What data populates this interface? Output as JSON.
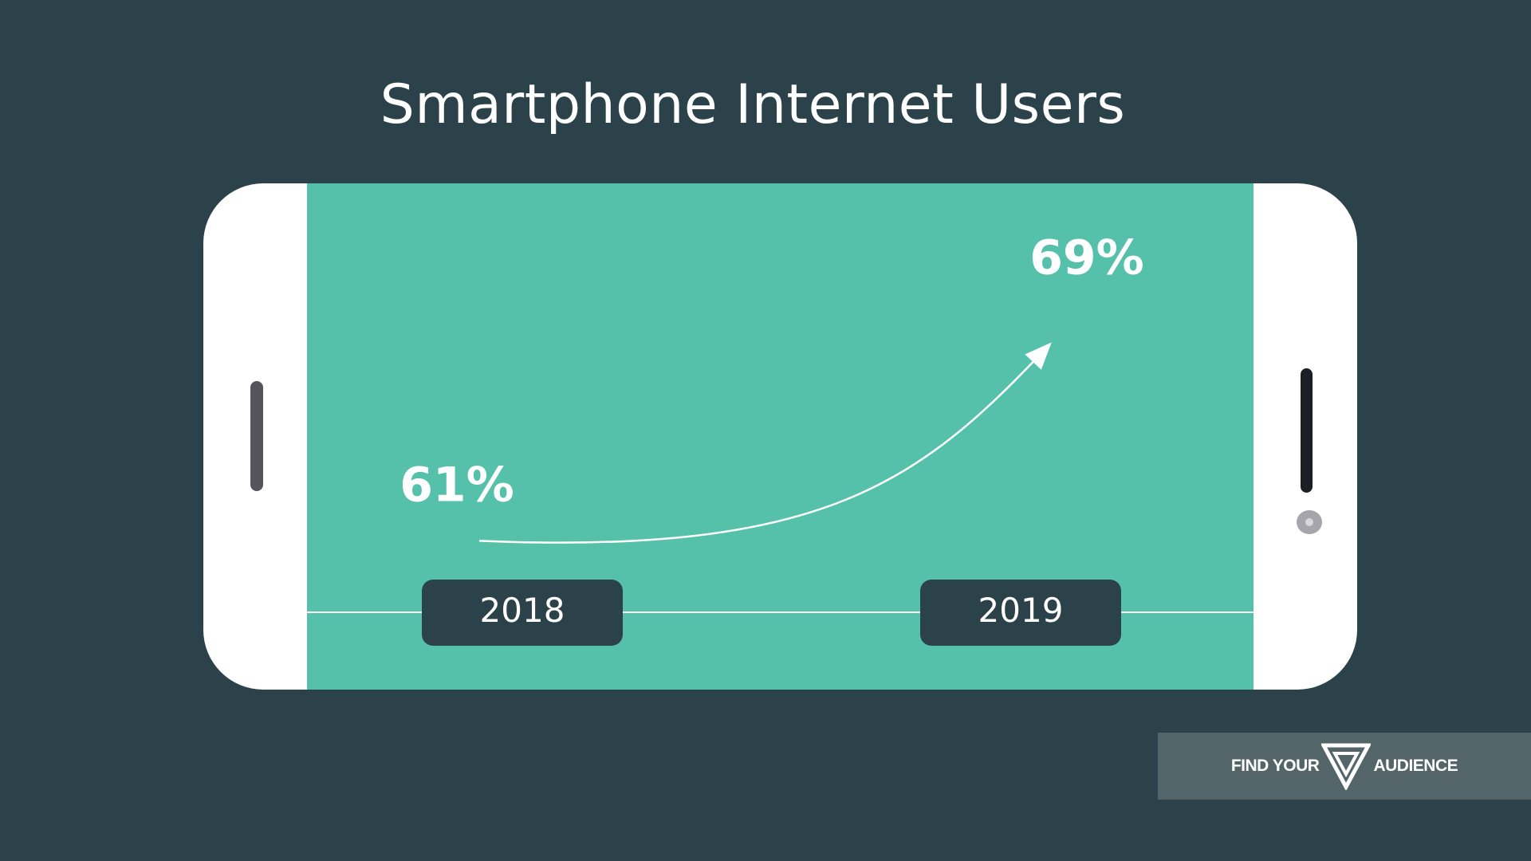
{
  "chart_data": {
    "type": "line",
    "title": "Smartphone Internet Users",
    "categories": [
      "2018",
      "2019"
    ],
    "series": [
      {
        "name": "Smartphone Internet Users",
        "values": [
          61,
          69
        ]
      }
    ],
    "data_labels": [
      "61%",
      "69%"
    ],
    "unit": "%",
    "ylim": [
      58,
      72
    ]
  },
  "brand": {
    "left_text": "FIND YOUR",
    "right_text": "AUDIENCE",
    "logo_icon": "fya-triangle-logo-icon"
  },
  "colors": {
    "background": "#2c424a",
    "screen": "#55c1ab",
    "label_box": "#2c424a",
    "text": "#ffffff",
    "brand_box": "#546569"
  }
}
